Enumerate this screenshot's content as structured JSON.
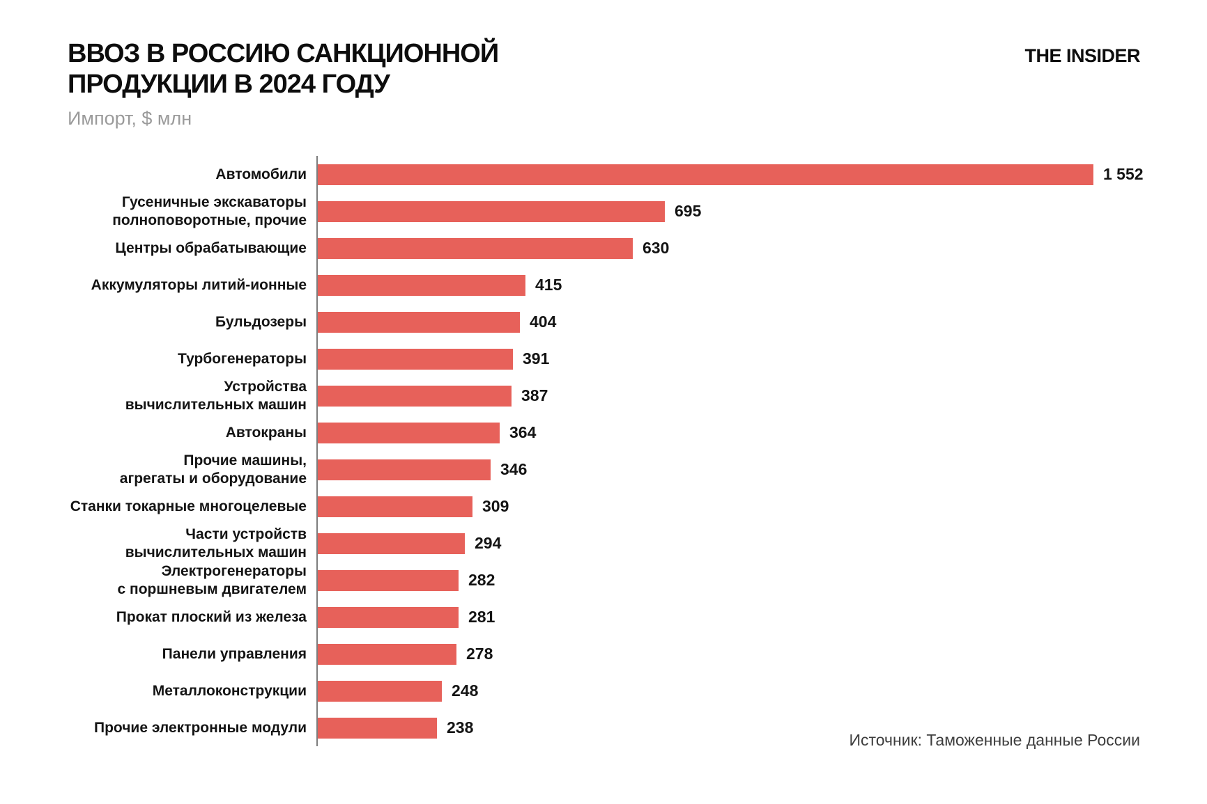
{
  "header": {
    "title": "ВВОЗ В РОССИЮ САНКЦИОННОЙ\nПРОДУКЦИИ В 2024 ГОДУ",
    "subtitle": "Импорт, $ млн",
    "brand": "THE INSIDER"
  },
  "footer": {
    "source": "Источник: Таможенные данные России"
  },
  "chart_data": {
    "type": "bar",
    "orientation": "horizontal",
    "title": "ВВОЗ В РОССИЮ САНКЦИОННОЙ ПРОДУКЦИИ В 2024 ГОДУ",
    "xlabel": "Импорт, $ млн",
    "ylabel": "",
    "xlim": [
      0,
      1552
    ],
    "grid": false,
    "legend": false,
    "bar_color": "#e7615a",
    "axis_color": "#7d7d7d",
    "categories": [
      "Автомобили",
      "Гусеничные экскаваторы\nполноповоротные, прочие",
      "Центры обрабатывающие",
      "Аккумуляторы литий-ионные",
      "Бульдозеры",
      "Турбогенераторы",
      "Устройства\nвычислительных машин",
      "Автокраны",
      "Прочие машины,\nагрегаты и оборудование",
      "Станки токарные многоцелевые",
      "Части устройств\nвычислительных машин",
      "Электрогенераторы\nс поршневым двигателем",
      "Прокат плоский из железа",
      "Панели управления",
      "Металлоконструкции",
      "Прочие электронные модули"
    ],
    "values": [
      1552,
      695,
      630,
      415,
      404,
      391,
      387,
      364,
      346,
      309,
      294,
      282,
      281,
      278,
      248,
      238
    ],
    "value_labels": [
      "1 552",
      "695",
      "630",
      "415",
      "404",
      "391",
      "387",
      "364",
      "346",
      "309",
      "294",
      "282",
      "281",
      "278",
      "248",
      "238"
    ]
  }
}
